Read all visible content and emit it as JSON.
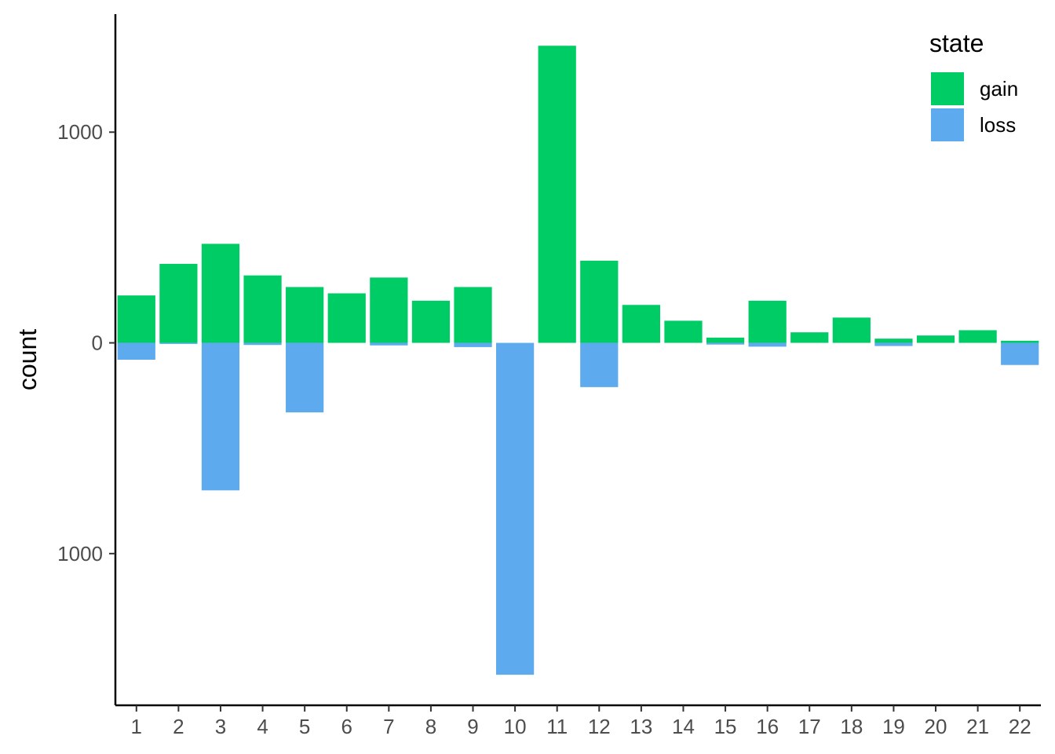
{
  "chart_data": {
    "type": "bar",
    "layout": "diverging-stacked",
    "categories": [
      "1",
      "2",
      "3",
      "4",
      "5",
      "6",
      "7",
      "8",
      "9",
      "10",
      "11",
      "12",
      "13",
      "14",
      "15",
      "16",
      "17",
      "18",
      "19",
      "20",
      "21",
      "22"
    ],
    "series": [
      {
        "name": "gain",
        "color": "#00CC66",
        "values": [
          225,
          375,
          470,
          320,
          265,
          235,
          310,
          200,
          265,
          0,
          1410,
          390,
          180,
          105,
          25,
          200,
          50,
          120,
          20,
          35,
          60,
          10
        ]
      },
      {
        "name": "loss",
        "color": "#5DABEE",
        "values": [
          -80,
          -5,
          -700,
          -10,
          -330,
          0,
          -12,
          0,
          -20,
          -1575,
          0,
          -210,
          0,
          0,
          -8,
          -18,
          0,
          0,
          -15,
          0,
          0,
          -105
        ]
      }
    ],
    "xlabel": "",
    "ylabel": "count",
    "ylim": [
      -1720,
      1560
    ],
    "yticks": [
      -1000,
      0,
      1000
    ],
    "ytick_labels": [
      "1000",
      "0",
      "1000"
    ],
    "legend": {
      "title": "state",
      "position": "top-right",
      "entries": [
        "gain",
        "loss"
      ]
    },
    "grid": false
  }
}
